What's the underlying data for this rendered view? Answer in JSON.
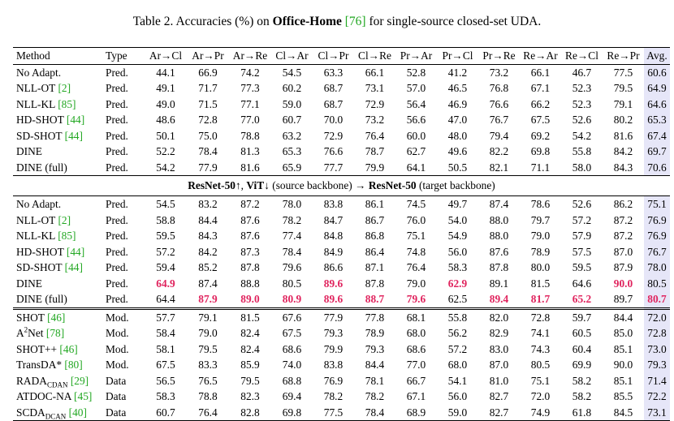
{
  "caption": {
    "prefix": "Table 2. Accuracies (%) on ",
    "dataset": "Office-Home",
    "cite": "[76]",
    "suffix": " for single-source closed-set UDA."
  },
  "columns": [
    "Method",
    "Type",
    "Ar→Cl",
    "Ar→Pr",
    "Ar→Re",
    "Cl→Ar",
    "Cl→Pr",
    "Cl→Re",
    "Pr→Ar",
    "Pr→Cl",
    "Pr→Re",
    "Re→Ar",
    "Re→Cl",
    "Re→Pr",
    "Avg."
  ],
  "section_label": {
    "part1": "ResNet-50",
    "arrow1": "↑, ",
    "part2": "ViT",
    "arrow2": "↓ (source backbone) → ",
    "part3": "ResNet-50",
    "part4": " (target backbone)"
  },
  "group1": [
    {
      "name": "No Adapt.",
      "cite": "",
      "type": "Pred.",
      "values": [
        "44.1",
        "66.9",
        "74.2",
        "54.5",
        "63.3",
        "66.1",
        "52.8",
        "41.2",
        "73.2",
        "66.1",
        "46.7",
        "77.5",
        "60.6"
      ],
      "best": []
    },
    {
      "name": "NLL-OT ",
      "cite": "[2]",
      "type": "Pred.",
      "values": [
        "49.1",
        "71.7",
        "77.3",
        "60.2",
        "68.7",
        "73.1",
        "57.0",
        "46.5",
        "76.8",
        "67.1",
        "52.3",
        "79.5",
        "64.9"
      ],
      "best": []
    },
    {
      "name": "NLL-KL ",
      "cite": "[85]",
      "type": "Pred.",
      "values": [
        "49.0",
        "71.5",
        "77.1",
        "59.0",
        "68.7",
        "72.9",
        "56.4",
        "46.9",
        "76.6",
        "66.2",
        "52.3",
        "79.1",
        "64.6"
      ],
      "best": []
    },
    {
      "name": "HD-SHOT ",
      "cite": "[44]",
      "type": "Pred.",
      "values": [
        "48.6",
        "72.8",
        "77.0",
        "60.7",
        "70.0",
        "73.2",
        "56.6",
        "47.0",
        "76.7",
        "67.5",
        "52.6",
        "80.2",
        "65.3"
      ],
      "best": []
    },
    {
      "name": "SD-SHOT ",
      "cite": "[44]",
      "type": "Pred.",
      "values": [
        "50.1",
        "75.0",
        "78.8",
        "63.2",
        "72.9",
        "76.4",
        "60.0",
        "48.0",
        "79.4",
        "69.2",
        "54.2",
        "81.6",
        "67.4"
      ],
      "best": []
    },
    {
      "name": "DINE",
      "cite": "",
      "type": "Pred.",
      "values": [
        "52.2",
        "78.4",
        "81.3",
        "65.3",
        "76.6",
        "78.7",
        "62.7",
        "49.6",
        "82.2",
        "69.8",
        "55.8",
        "84.2",
        "69.7"
      ],
      "best": []
    },
    {
      "name": "DINE (full)",
      "cite": "",
      "type": "Pred.",
      "values": [
        "54.2",
        "77.9",
        "81.6",
        "65.9",
        "77.7",
        "79.9",
        "64.1",
        "50.5",
        "82.1",
        "71.1",
        "58.0",
        "84.3",
        "70.6"
      ],
      "best": []
    }
  ],
  "group2": [
    {
      "name": "No Adapt.",
      "cite": "",
      "type": "Pred.",
      "values": [
        "54.5",
        "83.2",
        "87.2",
        "78.0",
        "83.8",
        "86.1",
        "74.5",
        "49.7",
        "87.4",
        "78.6",
        "52.6",
        "86.2",
        "75.1"
      ],
      "best": []
    },
    {
      "name": "NLL-OT ",
      "cite": "[2]",
      "type": "Pred.",
      "values": [
        "58.8",
        "84.4",
        "87.6",
        "78.2",
        "84.7",
        "86.7",
        "76.0",
        "54.0",
        "88.0",
        "79.7",
        "57.2",
        "87.2",
        "76.9"
      ],
      "best": []
    },
    {
      "name": "NLL-KL ",
      "cite": "[85]",
      "type": "Pred.",
      "values": [
        "59.5",
        "84.3",
        "87.6",
        "77.4",
        "84.8",
        "86.8",
        "75.1",
        "54.9",
        "88.0",
        "79.0",
        "57.9",
        "87.2",
        "76.9"
      ],
      "best": []
    },
    {
      "name": "HD-SHOT ",
      "cite": "[44]",
      "type": "Pred.",
      "values": [
        "57.2",
        "84.2",
        "87.3",
        "78.4",
        "84.9",
        "86.4",
        "74.8",
        "56.0",
        "87.6",
        "78.9",
        "57.5",
        "87.0",
        "76.7"
      ],
      "best": []
    },
    {
      "name": "SD-SHOT ",
      "cite": "[44]",
      "type": "Pred.",
      "values": [
        "59.4",
        "85.2",
        "87.8",
        "79.6",
        "86.6",
        "87.1",
        "76.4",
        "58.3",
        "87.8",
        "80.0",
        "59.5",
        "87.9",
        "78.0"
      ],
      "best": []
    },
    {
      "name": "DINE",
      "cite": "",
      "type": "Pred.",
      "values": [
        "64.9",
        "87.4",
        "88.8",
        "80.5",
        "89.6",
        "87.8",
        "79.0",
        "62.9",
        "89.1",
        "81.5",
        "64.6",
        "90.0",
        "80.5"
      ],
      "best": [
        0,
        4,
        7,
        11
      ]
    },
    {
      "name": "DINE (full)",
      "cite": "",
      "type": "Pred.",
      "values": [
        "64.4",
        "87.9",
        "89.0",
        "80.9",
        "89.6",
        "88.7",
        "79.6",
        "62.5",
        "89.4",
        "81.7",
        "65.2",
        "89.7",
        "80.7"
      ],
      "best": [
        1,
        2,
        3,
        4,
        5,
        6,
        8,
        9,
        10,
        12
      ]
    }
  ],
  "group3": [
    {
      "name": "SHOT ",
      "sub": "",
      "sup": "",
      "cite": "[46]",
      "type": "Mod.",
      "values": [
        "57.7",
        "79.1",
        "81.5",
        "67.6",
        "77.9",
        "77.8",
        "68.1",
        "55.8",
        "82.0",
        "72.8",
        "59.7",
        "84.4",
        "72.0"
      ]
    },
    {
      "name": "A",
      "sub": "",
      "sup": "2",
      "name2": "Net ",
      "cite": "[78]",
      "type": "Mod.",
      "values": [
        "58.4",
        "79.0",
        "82.4",
        "67.5",
        "79.3",
        "78.9",
        "68.0",
        "56.2",
        "82.9",
        "74.1",
        "60.5",
        "85.0",
        "72.8"
      ]
    },
    {
      "name": "SHOT++ ",
      "sub": "",
      "sup": "",
      "cite": "[46]",
      "type": "Mod.",
      "values": [
        "58.1",
        "79.5",
        "82.4",
        "68.6",
        "79.9",
        "79.3",
        "68.6",
        "57.2",
        "83.0",
        "74.3",
        "60.4",
        "85.1",
        "73.0"
      ]
    },
    {
      "name": "TransDA* ",
      "sub": "",
      "sup": "",
      "cite": "[80]",
      "type": "Mod.",
      "values": [
        "67.5",
        "83.3",
        "85.9",
        "74.0",
        "83.8",
        "84.4",
        "77.0",
        "68.0",
        "87.0",
        "80.5",
        "69.9",
        "90.0",
        "79.3"
      ]
    },
    {
      "name": "RADA",
      "sub": "CDAN",
      "sup": "",
      "cite": "[29]",
      "type": "Data",
      "values": [
        "56.5",
        "76.5",
        "79.5",
        "68.8",
        "76.9",
        "78.1",
        "66.7",
        "54.1",
        "81.0",
        "75.1",
        "58.2",
        "85.1",
        "71.4"
      ]
    },
    {
      "name": "ATDOC-NA ",
      "sub": "",
      "sup": "",
      "cite": "[45]",
      "type": "Data",
      "values": [
        "58.3",
        "78.8",
        "82.3",
        "69.4",
        "78.2",
        "78.2",
        "67.1",
        "56.0",
        "82.7",
        "72.0",
        "58.2",
        "85.5",
        "72.2"
      ]
    },
    {
      "name": "SCDA",
      "sub": "DCAN",
      "sup": "",
      "cite": "[40]",
      "type": "Data",
      "values": [
        "60.7",
        "76.4",
        "82.8",
        "69.8",
        "77.5",
        "78.4",
        "68.9",
        "59.0",
        "82.7",
        "74.9",
        "61.8",
        "84.5",
        "73.1"
      ]
    }
  ]
}
